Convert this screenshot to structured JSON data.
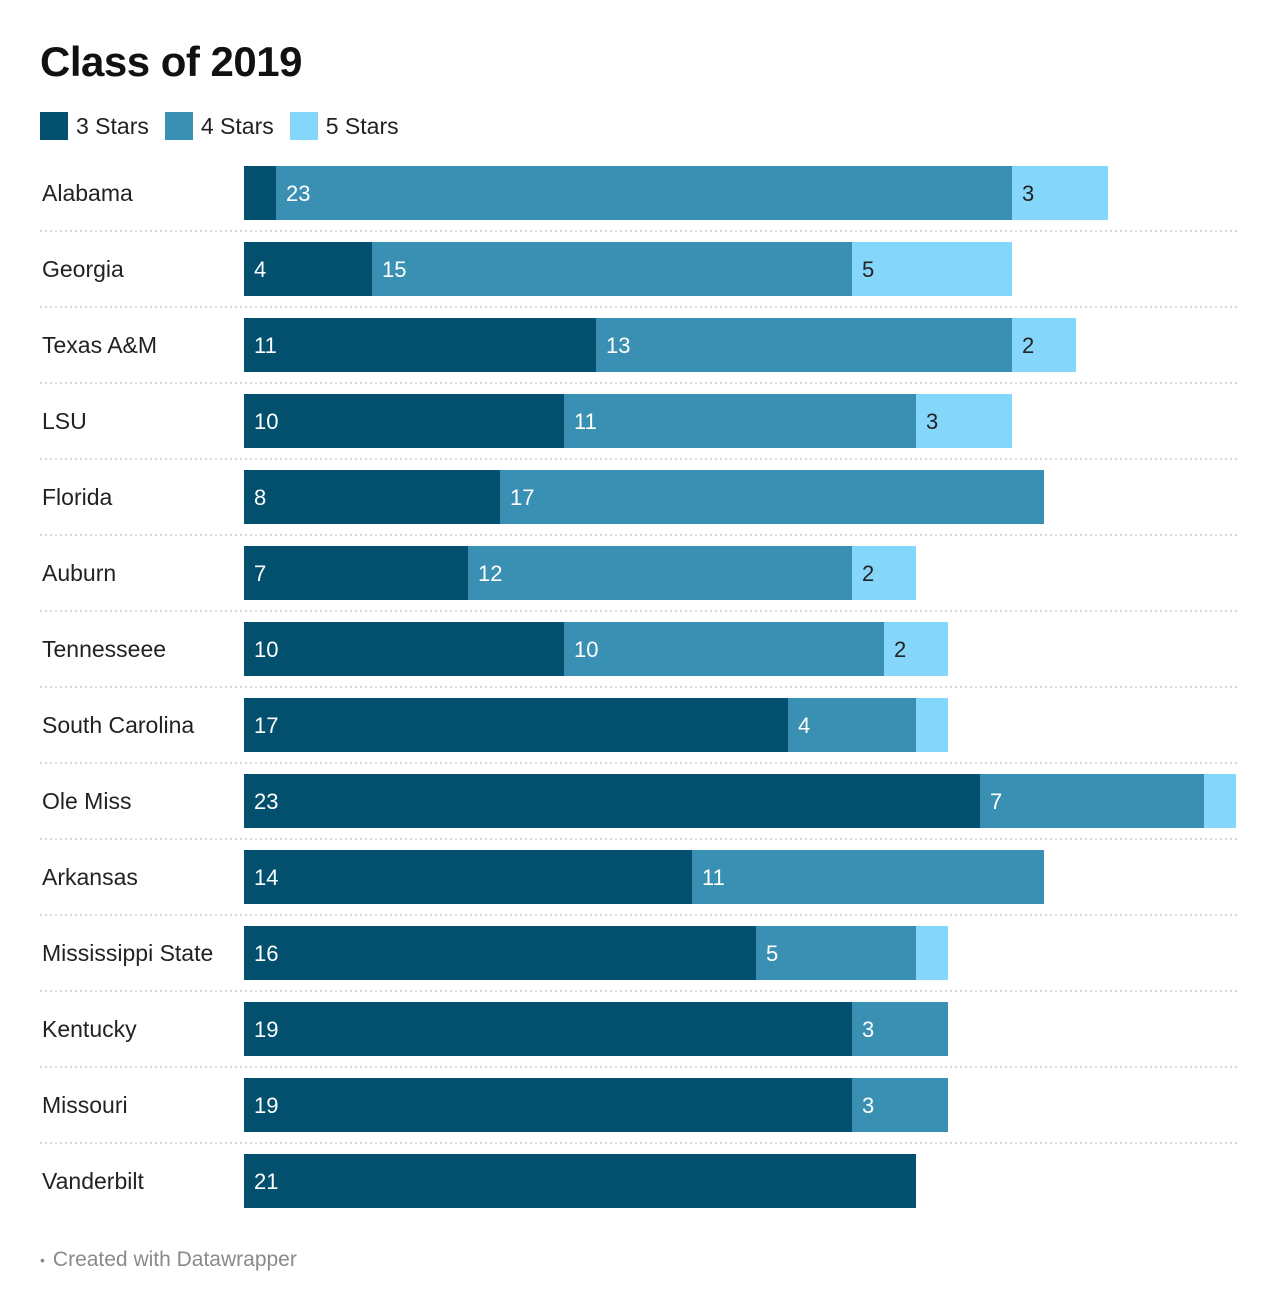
{
  "chart_data": {
    "type": "bar",
    "orientation": "horizontal",
    "stacked": true,
    "title": "Class of 2019",
    "categories": [
      "Alabama",
      "Georgia",
      "Texas A&M",
      "LSU",
      "Florida",
      "Auburn",
      "Tennesseee",
      "South Carolina",
      "Ole Miss",
      "Arkansas",
      "Mississippi State",
      "Kentucky",
      "Missouri",
      "Vanderbilt"
    ],
    "series": [
      {
        "name": "3 Stars",
        "color": "#03506e",
        "values": [
          1,
          4,
          11,
          10,
          8,
          7,
          10,
          17,
          23,
          14,
          16,
          19,
          19,
          21
        ]
      },
      {
        "name": "4 Stars",
        "color": "#3a90b2",
        "values": [
          23,
          15,
          13,
          11,
          17,
          12,
          10,
          4,
          7,
          11,
          5,
          3,
          3,
          0
        ]
      },
      {
        "name": "5 Stars",
        "color": "#85d6fb",
        "values": [
          3,
          5,
          2,
          3,
          0,
          2,
          2,
          1,
          1,
          0,
          1,
          0,
          0,
          0
        ]
      }
    ],
    "legend_position": "top-left",
    "grid": false
  },
  "footer": {
    "bullet": "•",
    "credit": "Created with Datawrapper"
  }
}
